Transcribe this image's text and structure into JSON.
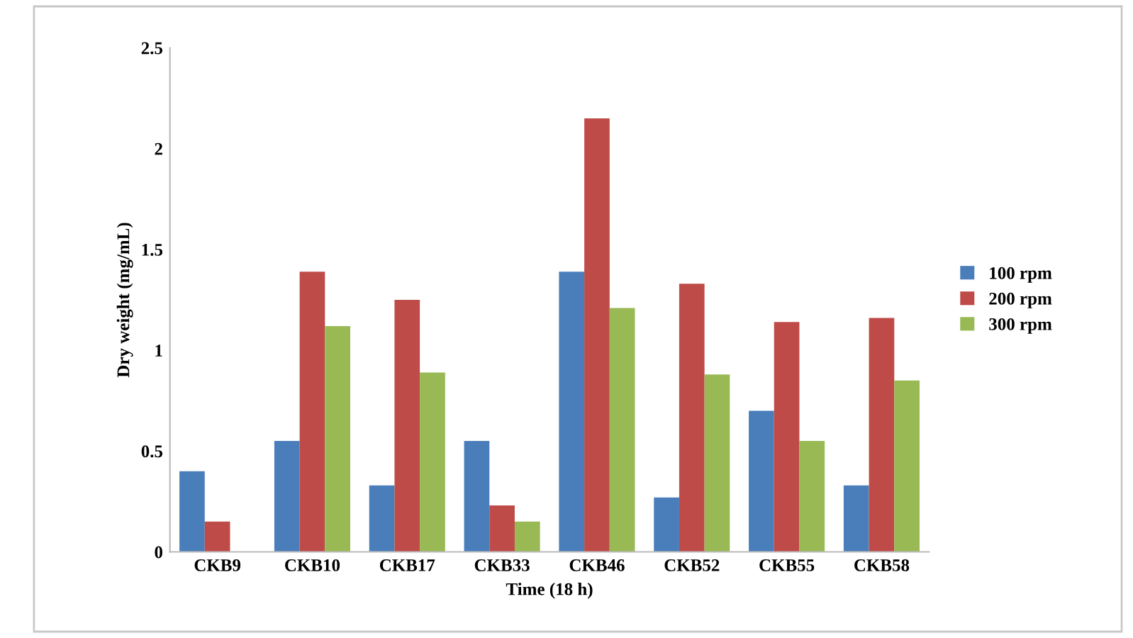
{
  "chart_data": {
    "type": "bar",
    "xlabel": "Time (18 h)",
    "ylabel": "Dry weight (mg/mL)",
    "categories": [
      "CKB9",
      "CKB10",
      "CKB17",
      "CKB33",
      "CKB46",
      "CKB52",
      "CKB55",
      "CKB58"
    ],
    "series": [
      {
        "name": "100 rpm",
        "color": "#4a7ebb",
        "values": [
          0.4,
          0.55,
          0.33,
          0.55,
          1.39,
          0.27,
          0.7,
          0.33
        ]
      },
      {
        "name": "200 rpm",
        "color": "#be4b48",
        "values": [
          0.15,
          1.39,
          1.25,
          0.23,
          2.15,
          1.33,
          1.14,
          1.16
        ]
      },
      {
        "name": "300 rpm",
        "color": "#98b954",
        "values": [
          0,
          1.12,
          0.89,
          0.15,
          1.21,
          0.88,
          0.55,
          0.85
        ]
      }
    ],
    "ylim": [
      0,
      2.5
    ],
    "yticks": [
      0,
      0.5,
      1,
      1.5,
      2,
      2.5
    ],
    "grid": false,
    "legend": "right"
  }
}
